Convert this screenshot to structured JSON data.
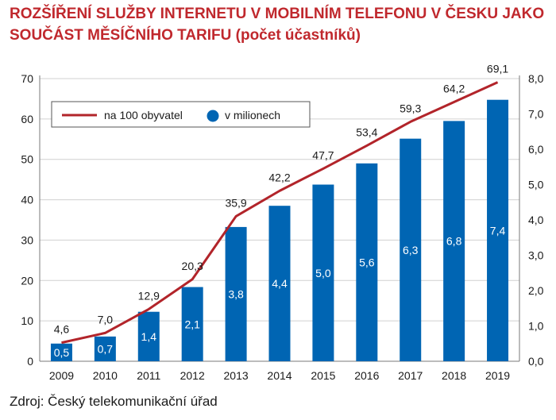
{
  "title_line1": "ROZŠÍŘENÍ SLUŽBY INTERNETU V MOBILNÍM TELEFONU V ČESKU JAKO",
  "title_line2": "SOUČÁST MĚSÍČNÍHO TARIFU (počet účastníků)",
  "source": "Zdroj: Český telekomunikační úřad",
  "colors": {
    "title": "#c0282d",
    "line": "#b2242a",
    "bar": "#0065b3",
    "grid": "#d0d0d0"
  },
  "chart_data": {
    "type": "bar+line",
    "categories": [
      "2009",
      "2010",
      "2011",
      "2012",
      "2013",
      "2014",
      "2015",
      "2016",
      "2017",
      "2018",
      "2019"
    ],
    "series": [
      {
        "name": "na 100 obyvatel",
        "type": "line",
        "axis": "left",
        "values": [
          4.6,
          7.0,
          12.9,
          20.3,
          35.9,
          42.2,
          47.7,
          53.4,
          59.3,
          64.2,
          69.1
        ],
        "labels": [
          "4,6",
          "7,0",
          "12,9",
          "20,3",
          "35,9",
          "42,2",
          "47,7",
          "53,4",
          "59,3",
          "64,2",
          "69,1"
        ]
      },
      {
        "name": "v milionech",
        "type": "bar",
        "axis": "right",
        "values": [
          0.5,
          0.7,
          1.4,
          2.1,
          3.8,
          4.4,
          5.0,
          5.6,
          6.3,
          6.8,
          7.4
        ],
        "labels": [
          "0,5",
          "0,7",
          "1,4",
          "2,1",
          "3,8",
          "4,4",
          "5,0",
          "5,6",
          "6,3",
          "6,8",
          "7,4"
        ]
      }
    ],
    "left_axis": {
      "ylim": [
        0,
        70
      ],
      "ticks": [
        "0",
        "10",
        "20",
        "30",
        "40",
        "50",
        "60",
        "70"
      ]
    },
    "right_axis": {
      "ylim": [
        0,
        8
      ],
      "ticks": [
        "0,0",
        "1,0",
        "2,0",
        "3,0",
        "4,0",
        "5,0",
        "6,0",
        "7,0",
        "8,0"
      ]
    },
    "legend": {
      "placement": "top-left",
      "items": [
        "na 100 obyvatel",
        "v milionech"
      ]
    },
    "grid": true
  }
}
